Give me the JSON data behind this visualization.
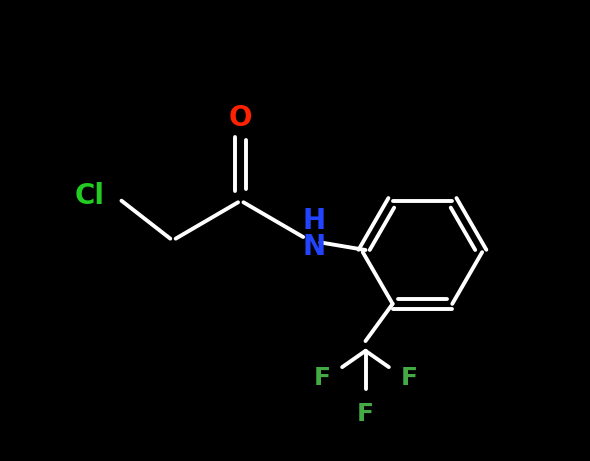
{
  "background_color": "#000000",
  "bond_color": "#ffffff",
  "bond_width": 2.8,
  "label_O": {
    "text": "O",
    "color": "#ff2200",
    "fontsize": 20,
    "fontweight": "bold"
  },
  "label_Cl": {
    "text": "Cl",
    "color": "#22cc22",
    "fontsize": 20,
    "fontweight": "bold"
  },
  "label_H": {
    "text": "H",
    "color": "#2244ff",
    "fontsize": 20,
    "fontweight": "bold"
  },
  "label_N": {
    "text": "N",
    "color": "#2244ff",
    "fontsize": 20,
    "fontweight": "bold"
  },
  "label_F1": {
    "text": "F",
    "color": "#44aa44",
    "fontsize": 18,
    "fontweight": "bold"
  },
  "label_F2": {
    "text": "F",
    "color": "#44aa44",
    "fontsize": 18,
    "fontweight": "bold"
  },
  "label_F3": {
    "text": "F",
    "color": "#44aa44",
    "fontsize": 18,
    "fontweight": "bold"
  },
  "xlim": [
    0,
    10
  ],
  "ylim": [
    0,
    8.5
  ]
}
